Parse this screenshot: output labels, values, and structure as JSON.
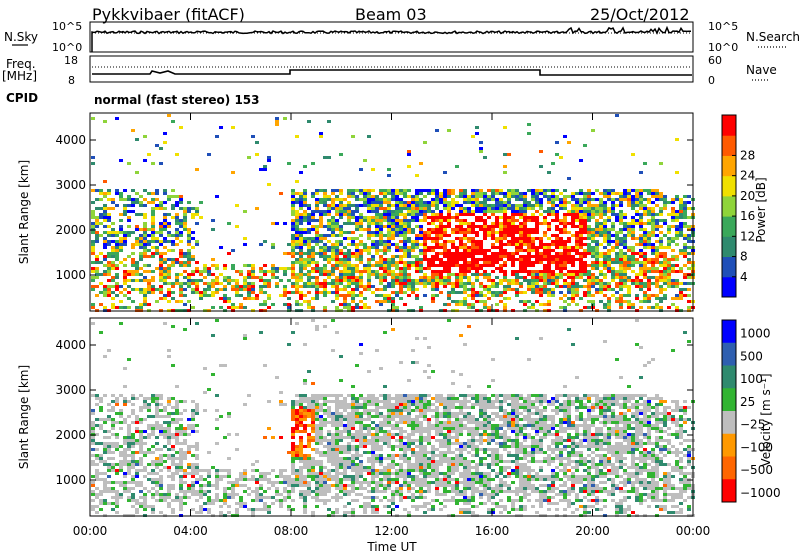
{
  "header": {
    "station": "Pykkvibaer (fitACF)",
    "beam": "Beam 03",
    "date": "25/Oct/2012"
  },
  "top_panels": {
    "nsky_label": "N.Sky",
    "nsky_top": "10^5",
    "nsky_bottom": "10^0",
    "nsearch_label": "N.Search",
    "nsearch_top": "10^5",
    "nsearch_bottom": "10^0",
    "freq_label": "Freq.",
    "freq_unit": "[MHz]",
    "freq_top": "18",
    "freq_bottom": "8",
    "nave_label": "Nave",
    "nave_top": "60",
    "nave_bottom": "0",
    "cpid_label": "CPID",
    "cpid_text": "normal (fast stereo) 153"
  },
  "chart_data": [
    {
      "type": "heatmap",
      "name": "power",
      "ylabel": "Slant Range [km]",
      "yticks": [
        1000,
        2000,
        3000,
        4000
      ],
      "ylim": [
        200,
        4600
      ],
      "colorbar_label": "Power [dB]",
      "colorbar_ticks": [
        "4",
        "8",
        "12",
        "16",
        "20",
        "24",
        "28"
      ],
      "colors": [
        "#0000ff",
        "#1f4fb8",
        "#2f8a6e",
        "#3aa85a",
        "#8fd43a",
        "#f0e000",
        "#ffa500",
        "#ff5a00",
        "#ff0000"
      ]
    },
    {
      "type": "heatmap",
      "name": "velocity",
      "ylabel": "Slant Range [km]",
      "yticks": [
        1000,
        2000,
        3000,
        4000
      ],
      "ylim": [
        200,
        4600
      ],
      "colorbar_label": "Velocity [m s⁻¹]",
      "colorbar_ticks": [
        "1000",
        "500",
        "100",
        "25",
        "−25",
        "−100",
        "−500",
        "−1000"
      ],
      "colors": [
        "#0000ff",
        "#2f5fb0",
        "#2f8a6e",
        "#32b432",
        "#bebebe",
        "#ff9900",
        "#ff6600",
        "#ff0000"
      ]
    }
  ],
  "x_axis": {
    "ticks": [
      "00:00",
      "04:00",
      "08:00",
      "12:00",
      "16:00",
      "20:00",
      "00:00"
    ],
    "label": "Time UT"
  }
}
